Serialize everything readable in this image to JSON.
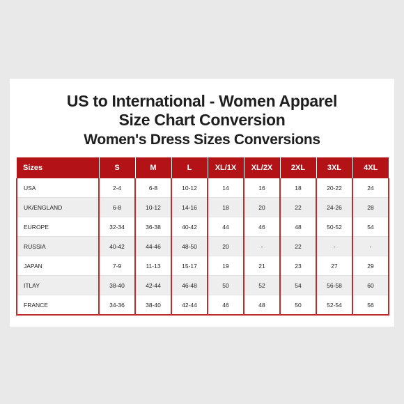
{
  "title_line1": "US to International - Women Apparel",
  "title_line2": "Size Chart Conversion",
  "subtitle": "Women's Dress Sizes Conversions",
  "table": {
    "headers": [
      "Sizes",
      "S",
      "M",
      "L",
      "XL/1X",
      "XL/2X",
      "2XL",
      "3XL",
      "4XL"
    ],
    "rows": [
      [
        "USA",
        "2-4",
        "6-8",
        "10-12",
        "14",
        "16",
        "18",
        "20-22",
        "24"
      ],
      [
        "UK/ENGLAND",
        "6-8",
        "10-12",
        "14-16",
        "18",
        "20",
        "22",
        "24-26",
        "28"
      ],
      [
        "EUROPE",
        "32-34",
        "36-38",
        "40-42",
        "44",
        "46",
        "48",
        "50-52",
        "54"
      ],
      [
        "RUSSIA",
        "40-42",
        "44-46",
        "48-50",
        "20",
        "-",
        "22",
        "-",
        "-"
      ],
      [
        "JAPAN",
        "7-9",
        "11-13",
        "15-17",
        "19",
        "21",
        "23",
        "27",
        "29"
      ],
      [
        "ITLAY",
        "38-40",
        "42-44",
        "46-48",
        "50",
        "52",
        "54",
        "56-58",
        "60"
      ],
      [
        "FRANCE",
        "34-36",
        "38-40",
        "42-44",
        "46",
        "48",
        "50",
        "52-54",
        "56"
      ]
    ]
  },
  "colors": {
    "header_red": "#b31217",
    "border_red": "#bf2a2a",
    "stripe_gray": "#eeeeee",
    "background": "#e9e9ea"
  }
}
